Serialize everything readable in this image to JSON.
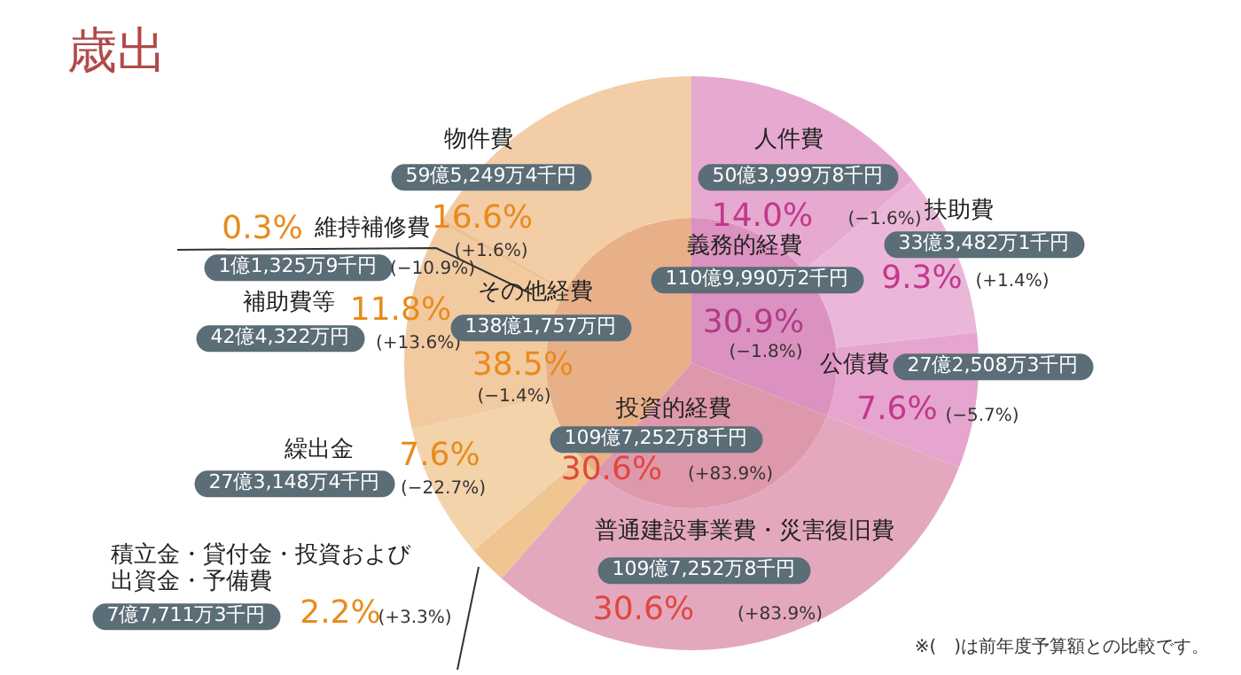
{
  "chart_data": [
    {
      "type": "donut",
      "title": "歳出",
      "categories": [
        "人件費",
        "扶助費",
        "公債費",
        "普通建設事業費・災害復旧費",
        "積立金・貸付金・投資および出資金・予備費",
        "繰出金",
        "補助費等",
        "維持補修費",
        "物件費"
      ],
      "values": [
        14.0,
        9.3,
        7.6,
        30.6,
        2.2,
        7.6,
        11.8,
        0.3,
        16.6
      ],
      "value_labels": [
        "14.0%",
        "9.3%",
        "7.6%",
        "30.6%",
        "2.2%",
        "7.6%",
        "11.8%",
        "0.3%",
        "16.6%"
      ],
      "colors": [
        "#e6a9d0",
        "#ebb7d9",
        "#e5a5cf",
        "#e3a8be",
        "#efc592",
        "#f3d3aa",
        "#f2caa0",
        "#eec294",
        "#f2cda6"
      ],
      "annotations": [
        "50億3,999万8千円",
        "(−1.6%)",
        "33億3,482万1千円",
        "(+1.4%)",
        "27億2,508万3千円",
        "(−5.7%)",
        "109億7,252万8千円",
        "(+83.9%)",
        "7億7,711万3千円",
        "(+3.3%)",
        "27億3,148万4千円",
        "(−22.7%)",
        "42億4,322万円",
        "(+13.6%)",
        "1億1,325万9千円",
        "(−10.9%)",
        "59億5,249万4千円",
        "(+1.6%)",
        "※(　)は前年度予算額との比較です。"
      ]
    },
    {
      "type": "pie",
      "categories": [
        "義務的経費",
        "投資的経費",
        "その他経費"
      ],
      "values": [
        30.9,
        30.6,
        38.5
      ],
      "value_labels": [
        "30.9%",
        "30.6%",
        "38.5%"
      ],
      "colors": [
        "#dc92c0",
        "#de98ab",
        "#e8b088"
      ],
      "annotations": [
        "110億9,990万2千円",
        "(−1.8%)",
        "109億7,252万8千円",
        "(+83.9%)",
        "138億1,757万円",
        "(−1.4%)"
      ]
    }
  ]
}
